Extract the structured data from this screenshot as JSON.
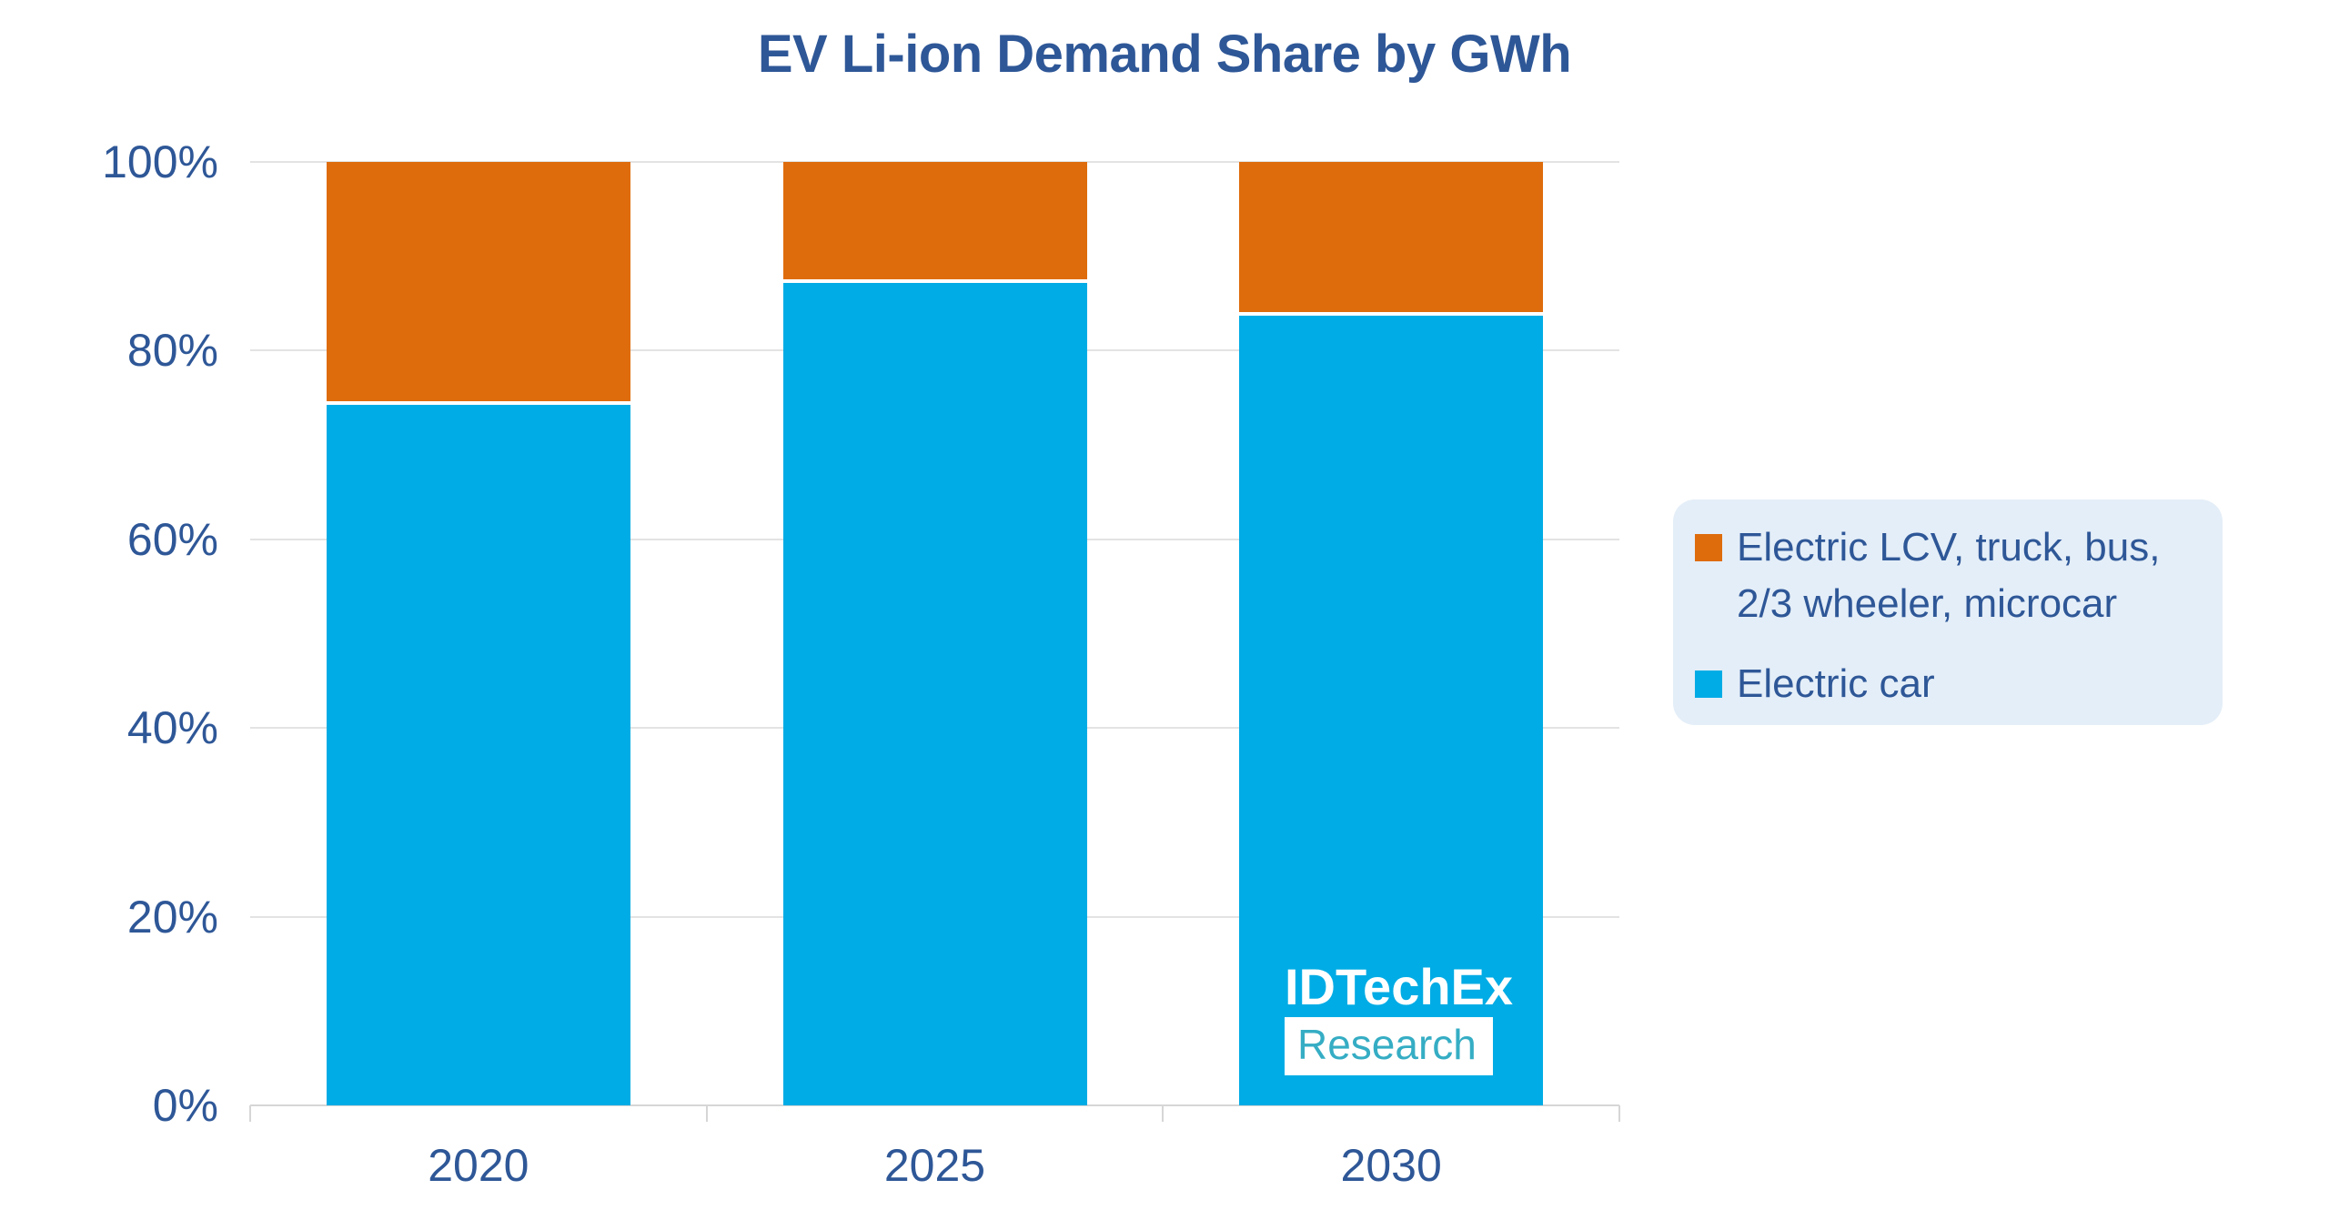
{
  "title": "EV Li-ion Demand Share by GWh",
  "chart_data": {
    "type": "bar",
    "stacked": true,
    "percent": true,
    "title": "EV Li-ion Demand Share by GWh",
    "categories": [
      "2020",
      "2025",
      "2030"
    ],
    "series": [
      {
        "name": "Electric car",
        "color": "#00ACE5",
        "values": [
          74.5,
          87.5,
          84
        ]
      },
      {
        "name": "Electric LCV, truck, bus, 2/3 wheeler, microcar",
        "color": "#DE6C0C",
        "values": [
          25.5,
          12.5,
          16
        ]
      }
    ],
    "xlabel": "",
    "ylabel": "",
    "ylim": [
      0,
      100
    ],
    "yticks": [
      {
        "value": 0,
        "label": "0%"
      },
      {
        "value": 20,
        "label": "20%"
      },
      {
        "value": 40,
        "label": "40%"
      },
      {
        "value": 60,
        "label": "60%"
      },
      {
        "value": 80,
        "label": "80%"
      },
      {
        "value": 100,
        "label": "100%"
      }
    ],
    "grid": true,
    "legend_position": "right"
  },
  "legend": {
    "items": [
      {
        "label": "Electric LCV, truck, bus,\n2/3 wheeler, microcar",
        "color": "#DE6C0C"
      },
      {
        "label": "Electric car",
        "color": "#00ACE5"
      }
    ]
  },
  "watermark": {
    "line1": "IDTechEx",
    "line2": "Research"
  },
  "colors": {
    "series_blue": "#00ACE5",
    "series_orange": "#DE6C0C",
    "text_blue": "#2E5797",
    "gridline": "#E3E3E3",
    "axis": "#D6D6D6",
    "legend_background": "#E4EEF8",
    "logo_text_white": "#FFFFFF",
    "logo_research_teal": "#35ADC4",
    "background": "#FFFFFF"
  }
}
